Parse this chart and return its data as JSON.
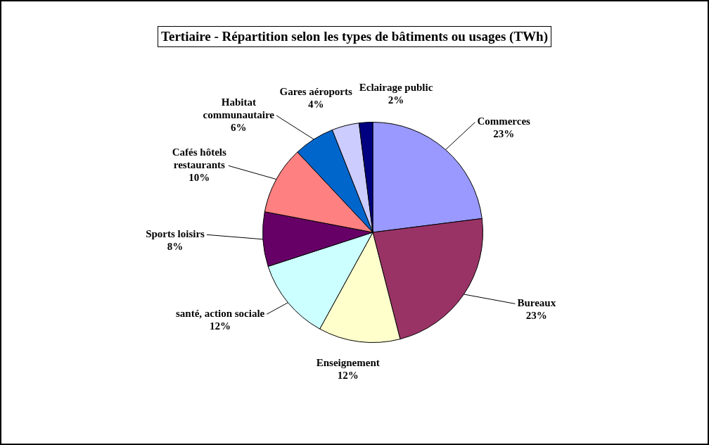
{
  "chart_data": {
    "type": "pie",
    "title": "Tertiaire - Répartition selon les types de bâtiments ou usages (TWh)",
    "categories": [
      "Commerces",
      "Bureaux",
      "Enseignement",
      "santé, action sociale",
      "Sports loisirs",
      "Cafés hôtels restaurants",
      "Habitat communautaire",
      "Gares aéroports",
      "Eclairage public"
    ],
    "values": [
      23,
      23,
      12,
      12,
      8,
      10,
      6,
      4,
      2
    ],
    "colors": [
      "#9999ff",
      "#993366",
      "#ffffcc",
      "#ccffff",
      "#660066",
      "#ff8080",
      "#0066cc",
      "#ccccff",
      "#000080"
    ],
    "value_labels": [
      "23%",
      "23%",
      "12%",
      "12%",
      "8%",
      "10%",
      "6%",
      "4%",
      "2%"
    ],
    "legend": false
  }
}
